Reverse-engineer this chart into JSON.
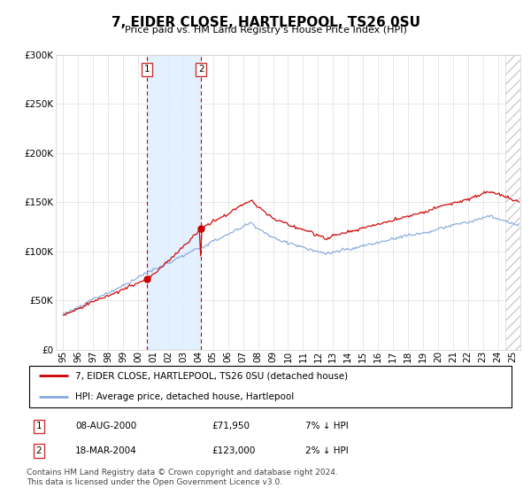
{
  "title": "7, EIDER CLOSE, HARTLEPOOL, TS26 0SU",
  "subtitle": "Price paid vs. HM Land Registry's House Price Index (HPI)",
  "legend_line1": "7, EIDER CLOSE, HARTLEPOOL, TS26 0SU (detached house)",
  "legend_line2": "HPI: Average price, detached house, Hartlepool",
  "purchase1_date": "08-AUG-2000",
  "purchase1_price": 71950,
  "purchase1_label": "1",
  "purchase1_hpi_diff": "7% ↓ HPI",
  "purchase2_date": "18-MAR-2004",
  "purchase2_price": 123000,
  "purchase2_label": "2",
  "purchase2_hpi_diff": "2% ↓ HPI",
  "footer": "Contains HM Land Registry data © Crown copyright and database right 2024.\nThis data is licensed under the Open Government Licence v3.0.",
  "line_color_red": "#cc0000",
  "line_color_blue": "#88aadd",
  "shading_color": "#ddeeff",
  "marker_color_red": "#cc0000",
  "ylim": [
    0,
    300000
  ],
  "yticks": [
    0,
    50000,
    100000,
    150000,
    200000,
    250000,
    300000
  ],
  "xlim_start": 1994.5,
  "xlim_end": 2025.5,
  "purchase1_year": 2000.583,
  "purchase2_year": 2004.208,
  "future_hatch_start": 2024.5
}
